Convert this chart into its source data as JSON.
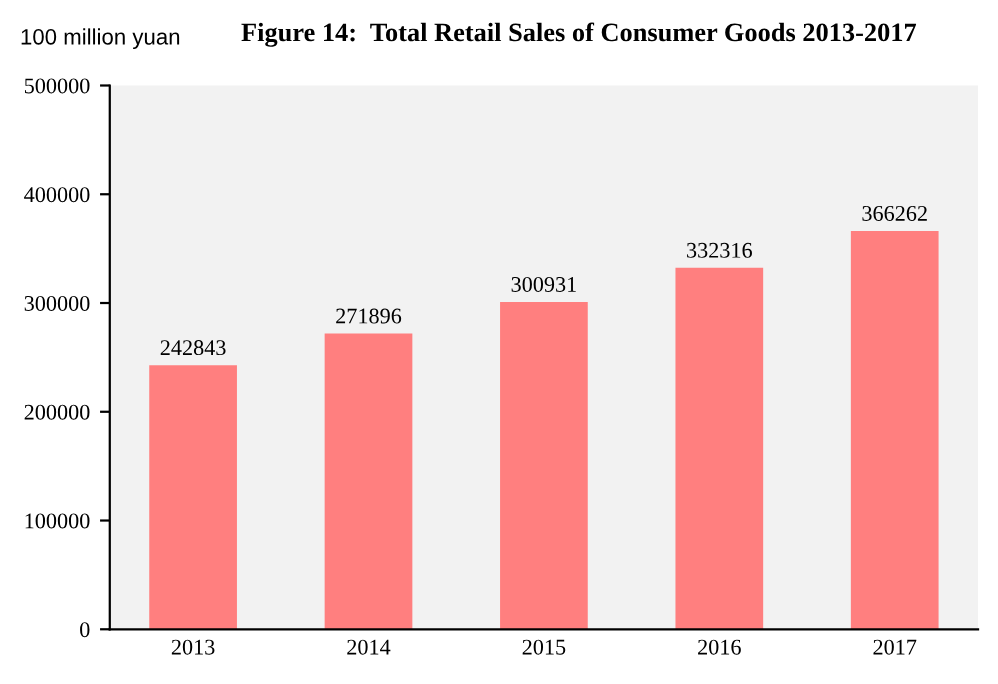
{
  "chart_data": {
    "type": "bar",
    "title": "Figure 14:  Total Retail Sales of Consumer Goods 2013-2017",
    "ylabel": "100 million yuan",
    "categories": [
      "2013",
      "2014",
      "2015",
      "2016",
      "2017"
    ],
    "values": [
      242843,
      271896,
      300931,
      332316,
      366262
    ],
    "color": "#ff7f7f",
    "ylim": [
      0,
      500000
    ],
    "yticks": [
      0,
      100000,
      200000,
      300000,
      400000,
      500000
    ],
    "grid": false,
    "data_labels": true
  }
}
